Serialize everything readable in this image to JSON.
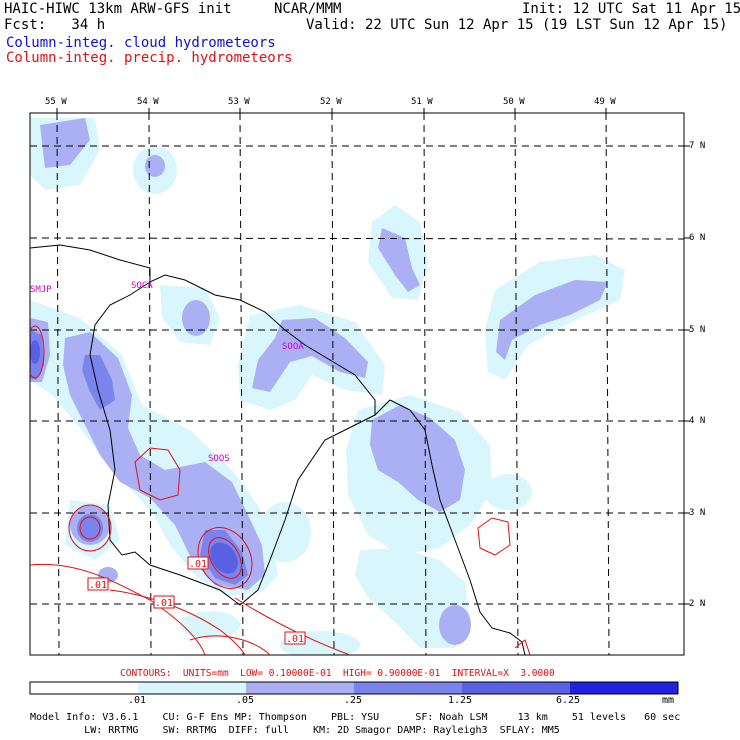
{
  "header": {
    "title_left": "HAIC-HIWC 13km ARW-GFS init",
    "org": "NCAR/MMM",
    "init": "Init: 12 UTC Sat 11 Apr 15",
    "fcst": "Fcst:   34 h",
    "valid": "Valid: 22 UTC Sun 12 Apr 15 (19 LST Sun 12 Apr 15)",
    "cloud_label": "Column-integ. cloud hydrometeors",
    "precip_label": "Column-integ. precip. hydrometeors"
  },
  "colors": {
    "cloud": "#1010d0",
    "precip": "#e01010",
    "station": "#d000d0",
    "shade_1": "#d8f6fb",
    "shade_2": "#aab0f3",
    "shade_3": "#7b84ec",
    "shade_4": "#5960e4",
    "shade_5": "#2222e0"
  },
  "map": {
    "lon_labels": [
      "55 W",
      "54 W",
      "53 W",
      "52 W",
      "51 W",
      "50 W",
      "49 W"
    ],
    "lat_labels": [
      "7 N",
      "6 N",
      "5 N",
      "4 N",
      "3 N",
      "2 N"
    ],
    "stations": [
      "SMJP",
      "SOCA",
      "SOOA",
      "SOOS"
    ],
    "contour_labels": [
      ".01",
      ".01",
      ".01",
      ".01"
    ]
  },
  "contours_text": "CONTOURS:  UNITS=mm  LOW= 0.10000E-01  HIGH= 0.90000E-01  INTERVAL=X  3.0000",
  "colorbar": {
    "ticks": [
      ".01",
      ".05",
      ".25",
      "1.25",
      "6.25"
    ],
    "unit": "mm"
  },
  "footer": {
    "line1": "Model Info: V3.6.1    CU: G-F Ens MP: Thompson    PBL: YSU      SF: Noah LSM     13 km    51 levels   60 sec",
    "line2": "         LW: RRTMG    SW: RRTMG  DIFF: full    KM: 2D Smagor DAMP: Rayleigh3  SFLAY: MM5"
  }
}
